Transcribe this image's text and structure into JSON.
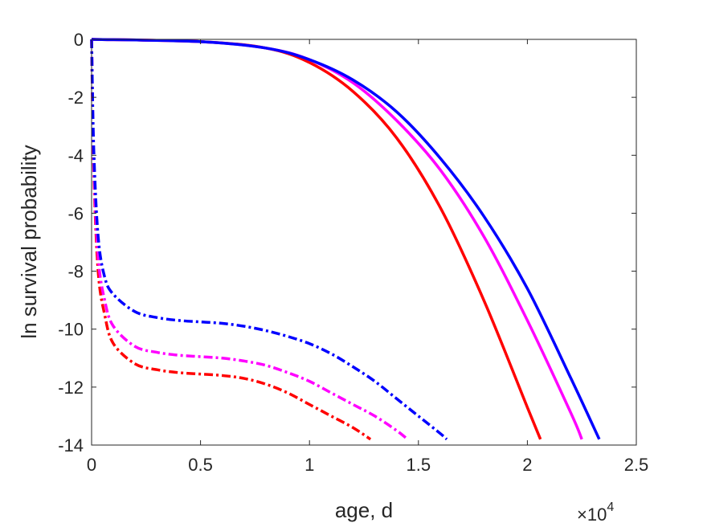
{
  "chart_data": {
    "type": "line",
    "xlabel": "age, d",
    "ylabel": "ln survival probability",
    "x_multiplier_label": "×10",
    "x_multiplier_exponent": "4",
    "xlim": [
      0,
      25000
    ],
    "ylim": [
      -14,
      0
    ],
    "xticks": [
      0,
      5000,
      10000,
      15000,
      20000,
      25000
    ],
    "xtick_labels": [
      "0",
      "0.5",
      "1",
      "1.5",
      "2",
      "2.5"
    ],
    "yticks": [
      0,
      -2,
      -4,
      -6,
      -8,
      -10,
      -12,
      -14
    ],
    "ytick_labels": [
      "0",
      "-2",
      "-4",
      "-6",
      "-8",
      "-10",
      "-12",
      "-14"
    ],
    "grid": false,
    "legend": "none",
    "series": [
      {
        "color": "#ff0000",
        "style": "solid",
        "x": [
          0,
          5000,
          8000,
          10000,
          12000,
          14000,
          16000,
          18000,
          20000,
          20600
        ],
        "y": [
          0,
          -0.08,
          -0.3,
          -0.8,
          -1.8,
          -3.4,
          -5.8,
          -9.0,
          -12.7,
          -13.8
        ]
      },
      {
        "color": "#ff00ff",
        "style": "solid",
        "x": [
          0,
          5000,
          8000,
          10000,
          12000,
          14000,
          16000,
          18000,
          20000,
          22000,
          22500
        ],
        "y": [
          0,
          -0.08,
          -0.3,
          -0.7,
          -1.5,
          -2.8,
          -4.5,
          -6.8,
          -9.7,
          -12.9,
          -13.8
        ]
      },
      {
        "color": "#0000ff",
        "style": "solid",
        "x": [
          0,
          5000,
          8000,
          10000,
          12000,
          14000,
          16000,
          18000,
          20000,
          22000,
          23300
        ],
        "y": [
          0,
          -0.08,
          -0.3,
          -0.7,
          -1.4,
          -2.5,
          -4.1,
          -6.1,
          -8.6,
          -11.7,
          -13.8
        ]
      },
      {
        "color": "#ff0000",
        "style": "dashdot",
        "x": [
          0,
          100,
          300,
          600,
          1000,
          2000,
          3000,
          4000,
          5000,
          6000,
          7000,
          8000,
          9000,
          10000,
          11000,
          12000,
          12800
        ],
        "y": [
          0,
          -4.5,
          -8.0,
          -9.5,
          -10.5,
          -11.2,
          -11.4,
          -11.5,
          -11.55,
          -11.6,
          -11.7,
          -11.9,
          -12.2,
          -12.6,
          -13.0,
          -13.4,
          -13.8
        ]
      },
      {
        "color": "#ff00ff",
        "style": "dashdot",
        "x": [
          0,
          100,
          300,
          600,
          1000,
          2000,
          3000,
          4000,
          5000,
          6000,
          7000,
          8000,
          9000,
          10000,
          11000,
          12000,
          13000,
          14000,
          14500
        ],
        "y": [
          0,
          -4.2,
          -7.5,
          -9.0,
          -9.9,
          -10.6,
          -10.8,
          -10.9,
          -10.95,
          -11.0,
          -11.1,
          -11.25,
          -11.5,
          -11.8,
          -12.2,
          -12.6,
          -13.0,
          -13.5,
          -13.8
        ]
      },
      {
        "color": "#0000ff",
        "style": "dashdot",
        "x": [
          0,
          100,
          300,
          600,
          1000,
          2000,
          3000,
          4000,
          5000,
          6000,
          7000,
          8000,
          9000,
          10000,
          11000,
          12000,
          13000,
          14000,
          15000,
          16000,
          16300
        ],
        "y": [
          0,
          -3.8,
          -6.8,
          -8.2,
          -8.8,
          -9.4,
          -9.6,
          -9.7,
          -9.75,
          -9.8,
          -9.9,
          -10.05,
          -10.25,
          -10.5,
          -10.85,
          -11.3,
          -11.8,
          -12.4,
          -13.0,
          -13.6,
          -13.8
        ]
      }
    ]
  }
}
